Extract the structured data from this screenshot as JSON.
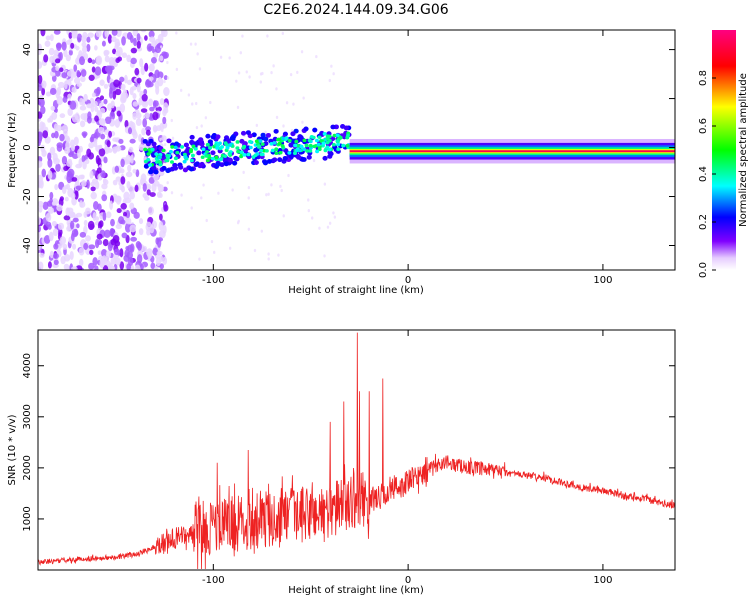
{
  "chart_data": [
    {
      "type": "heatmap",
      "title": "C2E6.2024.144.09.34.G06",
      "xlabel": "Height of straight line (km)",
      "ylabel": "Frequency (Hz)",
      "xlim": [
        -190,
        137
      ],
      "ylim": [
        -50,
        48
      ],
      "x_ticks": [
        -100,
        0,
        100
      ],
      "y_ticks": [
        -40,
        -20,
        0,
        20,
        40
      ],
      "colorbar": {
        "label": "Normalized spectral amplitude",
        "range": [
          0,
          1
        ],
        "ticks": [
          0.0,
          0.2,
          0.4,
          0.6,
          0.8
        ],
        "colors": [
          "#ffffff",
          "#8000ff",
          "#0000ff",
          "#00ffff",
          "#00ff00",
          "#ffff00",
          "#ff0000",
          "#ff0080"
        ]
      },
      "features": [
        {
          "name": "noise",
          "x_range": [
            -190,
            -132
          ],
          "freq_range": [
            -50,
            48
          ],
          "amplitude": 0.1
        },
        {
          "name": "scattered-signal",
          "x_range": [
            -135,
            -30
          ],
          "center_freq_start": -4,
          "center_freq_end": 3,
          "width_hz": 6,
          "amplitude": 0.4
        },
        {
          "name": "narrow-line",
          "x_range": [
            -30,
            137
          ],
          "center_freq": -1.5,
          "width_hz": 2.5,
          "amplitude": 0.95
        }
      ]
    },
    {
      "type": "line",
      "xlabel": "Height of straight line (km)",
      "ylabel": "SNR (10 * v/v)",
      "xlim": [
        -190,
        137
      ],
      "ylim": [
        0,
        4700
      ],
      "x_ticks": [
        -100,
        0,
        100
      ],
      "y_ticks": [
        1000,
        2000,
        3000,
        4000
      ],
      "color": "#ee2222",
      "series": [
        {
          "x": [
            -190,
            -170,
            -150,
            -140,
            -130,
            -120,
            -110,
            -100,
            -90,
            -80,
            -70,
            -60,
            -50,
            -40,
            -35,
            -30,
            -26,
            -20,
            -15,
            -10,
            -5,
            0,
            5,
            10,
            15,
            20,
            25,
            30,
            40,
            50,
            60,
            70,
            80,
            90,
            100,
            110,
            120,
            130,
            137
          ],
          "y": [
            150,
            200,
            250,
            300,
            450,
            600,
            700,
            800,
            850,
            900,
            950,
            1000,
            1050,
            1100,
            1200,
            1300,
            1300,
            1350,
            1400,
            1500,
            1600,
            1700,
            1800,
            1950,
            2050,
            2100,
            2050,
            2000,
            1950,
            1900,
            1850,
            1800,
            1700,
            1600,
            1550,
            1450,
            1400,
            1300,
            1250
          ],
          "peaks": [
            {
              "x": -26,
              "y": 4650
            },
            {
              "x": -25,
              "y": 3500
            },
            {
              "x": -20,
              "y": 3500
            },
            {
              "x": -13,
              "y": 3750
            },
            {
              "x": -40,
              "y": 2900
            },
            {
              "x": -33,
              "y": 3300
            },
            {
              "x": -82,
              "y": 2350
            },
            {
              "x": -98,
              "y": 2100
            }
          ]
        }
      ]
    }
  ]
}
